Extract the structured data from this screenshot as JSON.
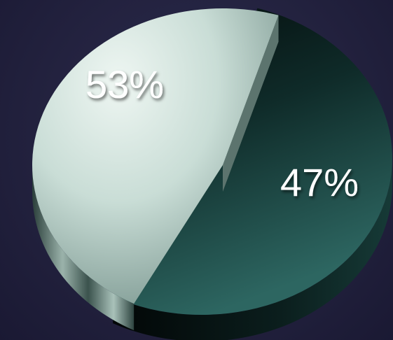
{
  "chart_data": {
    "type": "pie",
    "slices": [
      {
        "label": "53%",
        "value": 53
      },
      {
        "label": "47%",
        "value": 47
      }
    ],
    "colors": {
      "dark_slice": "#1f4a47",
      "light_slice": "#c6dcd5",
      "background": "#25243f"
    }
  }
}
